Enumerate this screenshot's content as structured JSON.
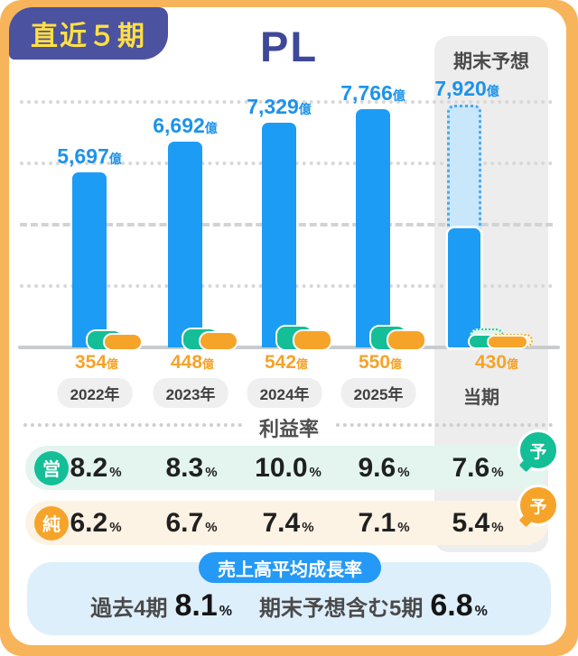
{
  "frame": {
    "badge_label": "直近５期",
    "title": "PL",
    "forecast_header": "期末予想"
  },
  "chart_data": {
    "type": "bar",
    "title": "PL",
    "unit": "億",
    "categories": [
      "2022年",
      "2023年",
      "2024年",
      "2025年",
      "当期"
    ],
    "gridline_values": [
      2000,
      4000,
      6000,
      8000
    ],
    "ylim": [
      0,
      8500
    ],
    "series": [
      {
        "name": "売上高",
        "values": [
          5697,
          6692,
          7329,
          7766,
          7920
        ],
        "labels": [
          "5,697",
          "6,692",
          "7,329",
          "7,766",
          "7,920"
        ]
      },
      {
        "name": "営業利益",
        "values": [
          467,
          556,
          733,
          745,
          602
        ]
      },
      {
        "name": "純利益",
        "values": [
          354,
          448,
          542,
          550,
          430
        ],
        "labels": [
          "354",
          "448",
          "542",
          "550",
          "430"
        ]
      }
    ],
    "forecast_column_index": 4,
    "forecast_achieved_fraction": 0.49
  },
  "margins": {
    "section_title": "利益率",
    "percent_symbol": "%",
    "rows": [
      {
        "key": "op",
        "badge": "営",
        "values": [
          "8.2",
          "8.3",
          "10.0",
          "9.6",
          "7.6"
        ],
        "forecast_badge": "予"
      },
      {
        "key": "net",
        "badge": "純",
        "values": [
          "6.2",
          "6.7",
          "7.4",
          "7.1",
          "5.4"
        ],
        "forecast_badge": "予"
      }
    ]
  },
  "growth": {
    "title": "売上高平均成長率",
    "stats": [
      {
        "label": "過去4期",
        "value": "8.1"
      },
      {
        "label": "期末予想含む5期",
        "value": "6.8"
      }
    ],
    "percent_symbol": "%"
  },
  "colors": {
    "frame_orange": "#F8B45B",
    "badge_navy": "#4B529F",
    "badge_text_yellow": "#FFE044",
    "title_indigo": "#3E4899",
    "bar_blue": "#1C9CF4",
    "forecast_fill_light_blue": "#C9E7FB",
    "teal": "#14BE96",
    "orange": "#F6A429",
    "row_bg_mint": "#E4F5F0",
    "row_bg_cream": "#FDF3E4",
    "growth_box_blue": "#DEEFFC",
    "forecast_col_gray": "#EDEDED"
  }
}
